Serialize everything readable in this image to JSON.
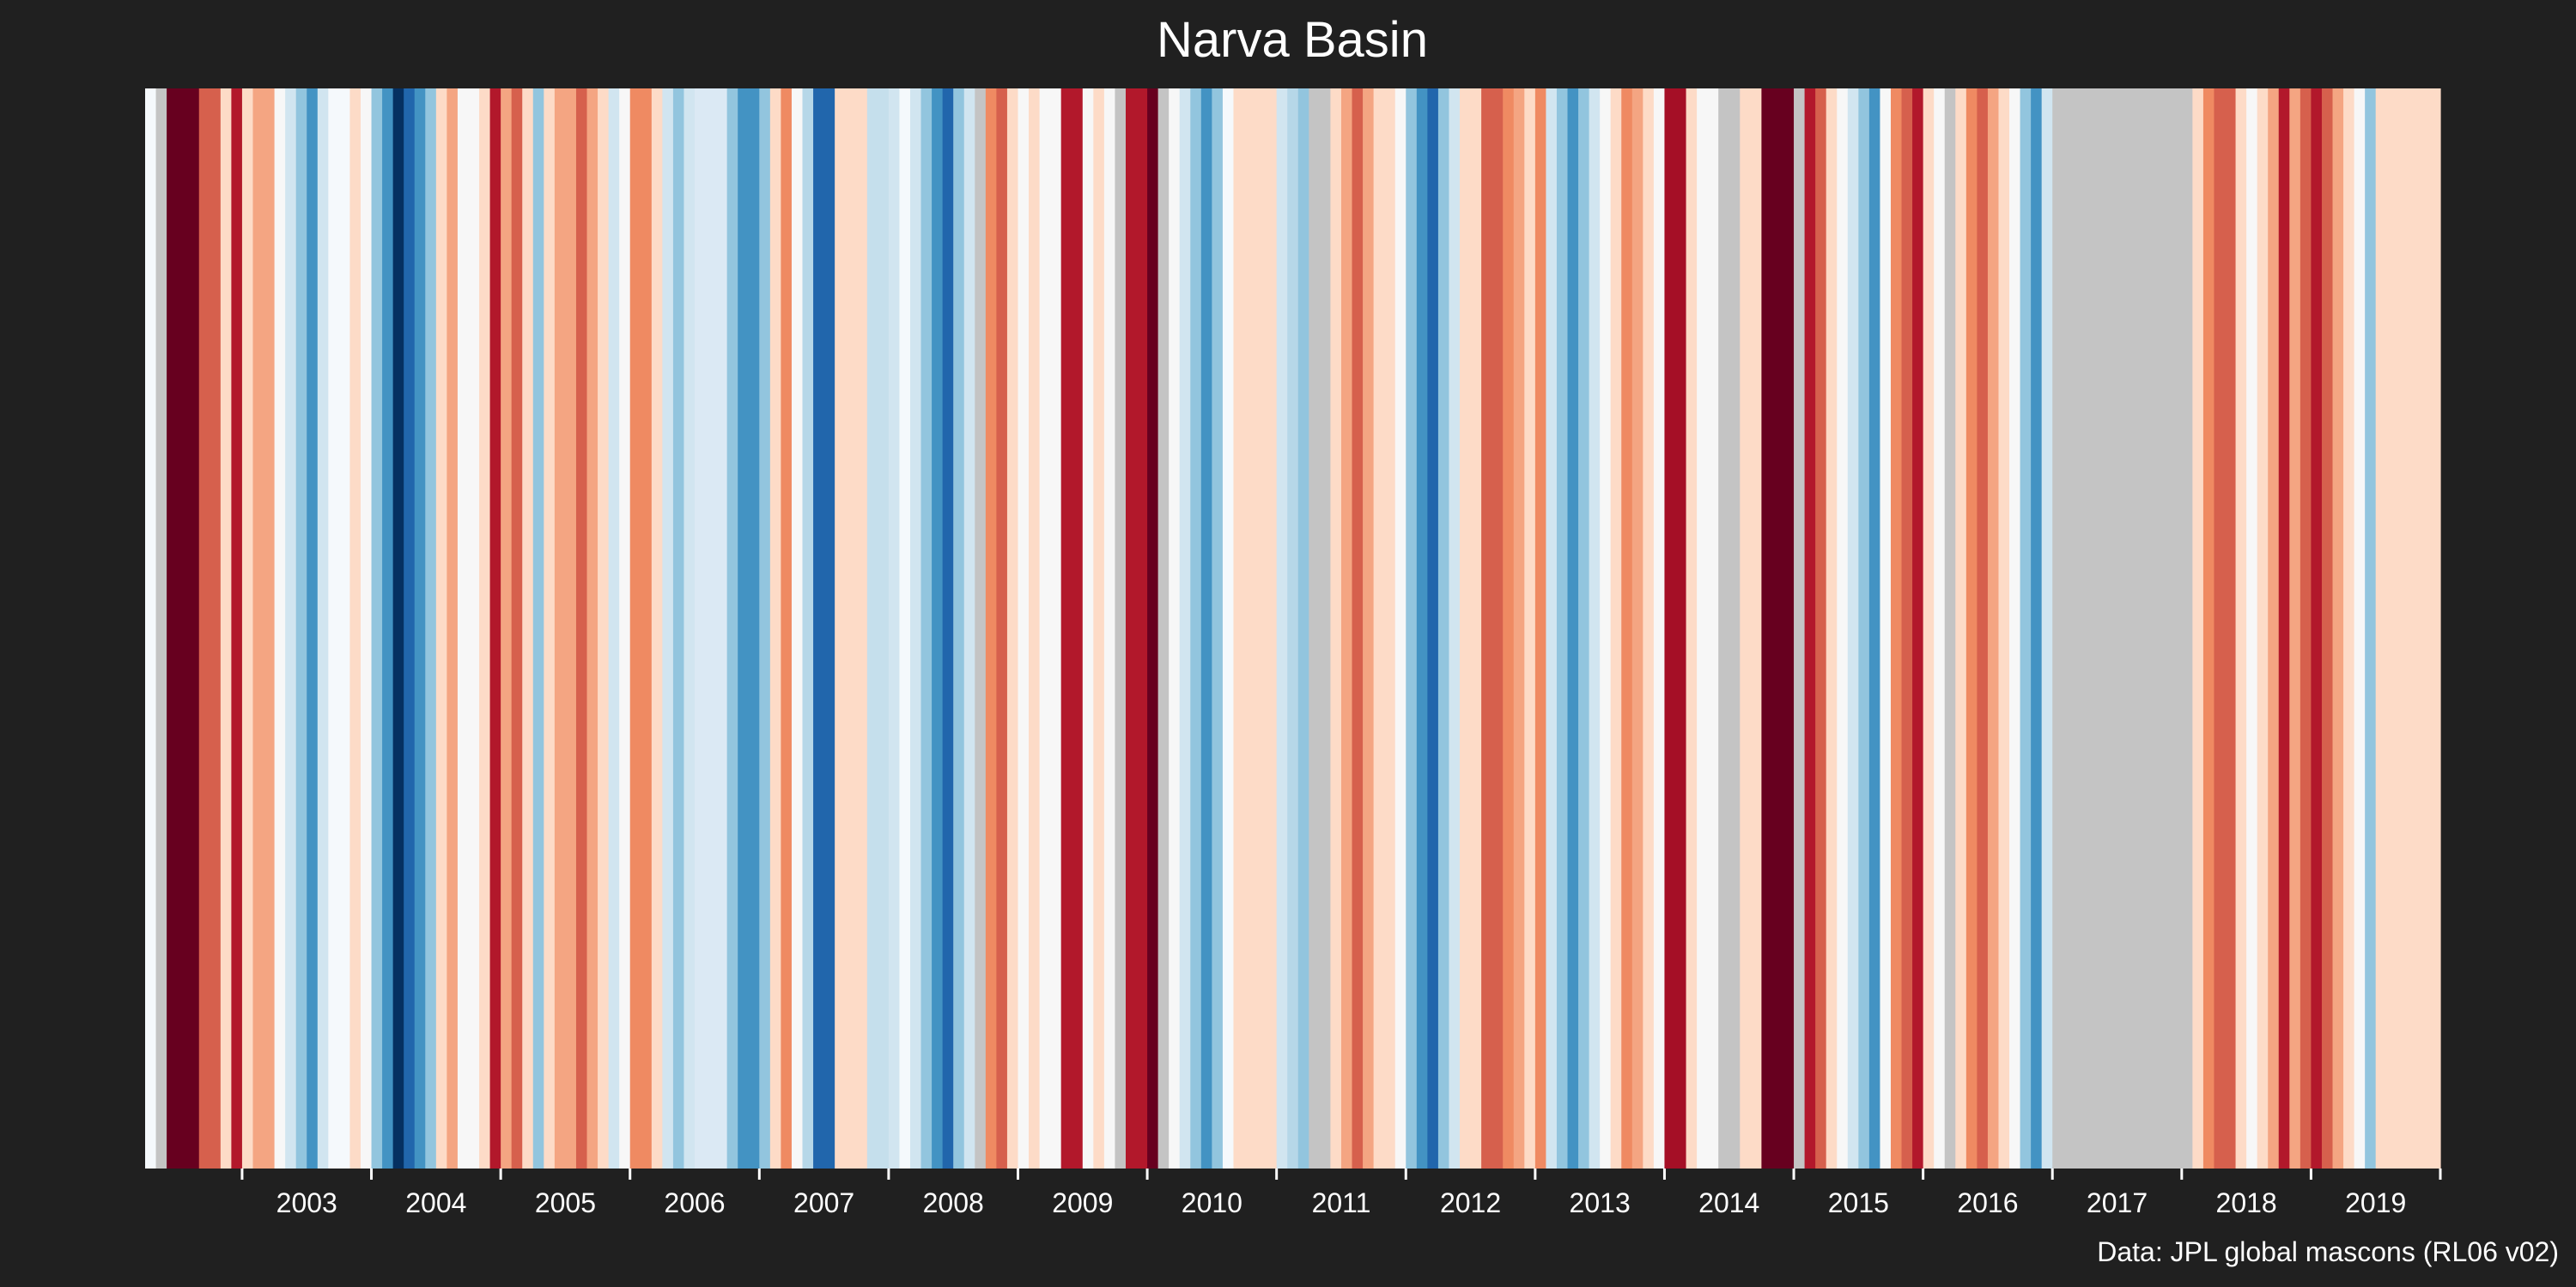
{
  "page": {
    "background": "#202020",
    "credit": "Data: JPL global mascons (RL06 v02)"
  },
  "chart_data": {
    "type": "heatmap",
    "title": "Narva Basin",
    "xlabel": "",
    "ylabel": "",
    "x_unit": "month",
    "x_start": "2002-04",
    "x_end": "2020-01",
    "x_ticks": [
      "2003",
      "2004",
      "2005",
      "2006",
      "2007",
      "2008",
      "2009",
      "2010",
      "2011",
      "2012",
      "2013",
      "2014",
      "2015",
      "2016",
      "2017",
      "2018",
      "2019"
    ],
    "color_scale": "RdBu_r (red = above mean, blue = below mean)",
    "missing_color": "#c4c4c4",
    "grid": false,
    "legend": "none",
    "stripes": [
      {
        "start": "2002-04",
        "end": "2002-05",
        "color": "#f5f9fc"
      },
      {
        "start": "2002-05",
        "end": "2002-06",
        "color": "#c4c4c4"
      },
      {
        "start": "2002-06",
        "end": "2002-09",
        "color": "#67001f"
      },
      {
        "start": "2002-09",
        "end": "2002-11",
        "color": "#d6604d"
      },
      {
        "start": "2002-11",
        "end": "2002-12",
        "color": "#fddbc7"
      },
      {
        "start": "2002-12",
        "end": "2003-01",
        "color": "#b2182b"
      },
      {
        "start": "2003-01",
        "end": "2003-02",
        "color": "#fddbc7"
      },
      {
        "start": "2003-02",
        "end": "2003-04",
        "color": "#f4a582"
      },
      {
        "start": "2003-04",
        "end": "2003-05",
        "color": "#f7f7f7"
      },
      {
        "start": "2003-05",
        "end": "2003-06",
        "color": "#d1e5f0"
      },
      {
        "start": "2003-06",
        "end": "2003-07",
        "color": "#92c5de"
      },
      {
        "start": "2003-07",
        "end": "2003-08",
        "color": "#4393c3"
      },
      {
        "start": "2003-08",
        "end": "2003-09",
        "color": "#d1e5f0"
      },
      {
        "start": "2003-09",
        "end": "2003-11",
        "color": "#f5f9fc"
      },
      {
        "start": "2003-11",
        "end": "2003-12",
        "color": "#fddbc7"
      },
      {
        "start": "2003-12",
        "end": "2004-01",
        "color": "#f7f7f7"
      },
      {
        "start": "2004-01",
        "end": "2004-02",
        "color": "#92c5de"
      },
      {
        "start": "2004-02",
        "end": "2004-03",
        "color": "#4393c3"
      },
      {
        "start": "2004-03",
        "end": "2004-04",
        "color": "#053061"
      },
      {
        "start": "2004-04",
        "end": "2004-05",
        "color": "#2166ac"
      },
      {
        "start": "2004-05",
        "end": "2004-06",
        "color": "#4393c3"
      },
      {
        "start": "2004-06",
        "end": "2004-07",
        "color": "#92c5de"
      },
      {
        "start": "2004-07",
        "end": "2004-08",
        "color": "#fddbc7"
      },
      {
        "start": "2004-08",
        "end": "2004-09",
        "color": "#f4a582"
      },
      {
        "start": "2004-09",
        "end": "2004-11",
        "color": "#f7f7f7"
      },
      {
        "start": "2004-11",
        "end": "2004-12",
        "color": "#fddbc7"
      },
      {
        "start": "2004-12",
        "end": "2005-01",
        "color": "#b2182b"
      },
      {
        "start": "2005-01",
        "end": "2005-02",
        "color": "#f4a582"
      },
      {
        "start": "2005-02",
        "end": "2005-03",
        "color": "#d6604d"
      },
      {
        "start": "2005-03",
        "end": "2005-04",
        "color": "#fddbc7"
      },
      {
        "start": "2005-04",
        "end": "2005-05",
        "color": "#92c5de"
      },
      {
        "start": "2005-05",
        "end": "2005-06",
        "color": "#fddbc7"
      },
      {
        "start": "2005-06",
        "end": "2005-08",
        "color": "#f4a582"
      },
      {
        "start": "2005-08",
        "end": "2005-09",
        "color": "#d6604d"
      },
      {
        "start": "2005-09",
        "end": "2005-10",
        "color": "#f4a582"
      },
      {
        "start": "2005-10",
        "end": "2005-11",
        "color": "#fddbc7"
      },
      {
        "start": "2005-11",
        "end": "2005-12",
        "color": "#d1e5f0"
      },
      {
        "start": "2005-12",
        "end": "2006-01",
        "color": "#f7f7f7"
      },
      {
        "start": "2006-01",
        "end": "2006-03",
        "color": "#ef8a62"
      },
      {
        "start": "2006-03",
        "end": "2006-04",
        "color": "#fddbc7"
      },
      {
        "start": "2006-04",
        "end": "2006-05",
        "color": "#d1e5f0"
      },
      {
        "start": "2006-05",
        "end": "2006-06",
        "color": "#92c5de"
      },
      {
        "start": "2006-06",
        "end": "2006-07",
        "color": "#d1e5f0"
      },
      {
        "start": "2006-07",
        "end": "2006-10",
        "color": "#dbe9f4"
      },
      {
        "start": "2006-10",
        "end": "2006-11",
        "color": "#92c5de"
      },
      {
        "start": "2006-11",
        "end": "2007-01",
        "color": "#4393c3"
      },
      {
        "start": "2007-01",
        "end": "2007-02",
        "color": "#92c5de"
      },
      {
        "start": "2007-02",
        "end": "2007-03",
        "color": "#fddbc7"
      },
      {
        "start": "2007-03",
        "end": "2007-04",
        "color": "#ef8a62"
      },
      {
        "start": "2007-04",
        "end": "2007-05",
        "color": "#f7f7f7"
      },
      {
        "start": "2007-05",
        "end": "2007-06",
        "color": "#b6d7e8"
      },
      {
        "start": "2007-06",
        "end": "2007-08",
        "color": "#2166ac"
      },
      {
        "start": "2007-08",
        "end": "2007-09",
        "color": "#fddbc7"
      },
      {
        "start": "2007-09",
        "end": "2007-11",
        "color": "#fddbc7"
      },
      {
        "start": "2007-11",
        "end": "2008-01",
        "color": "#c5dfec"
      },
      {
        "start": "2008-01",
        "end": "2008-02",
        "color": "#d1e5f0"
      },
      {
        "start": "2008-02",
        "end": "2008-03",
        "color": "#f5f9fc"
      },
      {
        "start": "2008-03",
        "end": "2008-04",
        "color": "#d1e5f0"
      },
      {
        "start": "2008-04",
        "end": "2008-05",
        "color": "#92c5de"
      },
      {
        "start": "2008-05",
        "end": "2008-06",
        "color": "#4393c3"
      },
      {
        "start": "2008-06",
        "end": "2008-07",
        "color": "#2166ac"
      },
      {
        "start": "2008-07",
        "end": "2008-08",
        "color": "#92c5de"
      },
      {
        "start": "2008-08",
        "end": "2008-09",
        "color": "#d1e5f0"
      },
      {
        "start": "2008-09",
        "end": "2008-10",
        "color": "#c4c4c4"
      },
      {
        "start": "2008-10",
        "end": "2008-11",
        "color": "#ef8a62"
      },
      {
        "start": "2008-11",
        "end": "2008-12",
        "color": "#d6604d"
      },
      {
        "start": "2008-12",
        "end": "2009-01",
        "color": "#fddbc7"
      },
      {
        "start": "2009-01",
        "end": "2009-02",
        "color": "#f7f7f7"
      },
      {
        "start": "2009-02",
        "end": "2009-03",
        "color": "#fddbc7"
      },
      {
        "start": "2009-03",
        "end": "2009-05",
        "color": "#f7f7f7"
      },
      {
        "start": "2009-05",
        "end": "2009-07",
        "color": "#b2182b"
      },
      {
        "start": "2009-07",
        "end": "2009-08",
        "color": "#f7f7f7"
      },
      {
        "start": "2009-08",
        "end": "2009-09",
        "color": "#fddbc7"
      },
      {
        "start": "2009-09",
        "end": "2009-10",
        "color": "#f7f7f7"
      },
      {
        "start": "2009-10",
        "end": "2009-11",
        "color": "#c4c4c4"
      },
      {
        "start": "2009-11",
        "end": "2010-01",
        "color": "#b2182b"
      },
      {
        "start": "2010-01",
        "end": "2010-02",
        "color": "#67001f"
      },
      {
        "start": "2010-02",
        "end": "2010-03",
        "color": "#c4c4c4"
      },
      {
        "start": "2010-03",
        "end": "2010-04",
        "color": "#f7f7f7"
      },
      {
        "start": "2010-04",
        "end": "2010-05",
        "color": "#d1e5f0"
      },
      {
        "start": "2010-05",
        "end": "2010-06",
        "color": "#92c5de"
      },
      {
        "start": "2010-06",
        "end": "2010-07",
        "color": "#4393c3"
      },
      {
        "start": "2010-07",
        "end": "2010-08",
        "color": "#92c5de"
      },
      {
        "start": "2010-08",
        "end": "2010-09",
        "color": "#f5f9fc"
      },
      {
        "start": "2010-09",
        "end": "2011-01",
        "color": "#fddbc7"
      },
      {
        "start": "2011-01",
        "end": "2011-02",
        "color": "#d1e5f0"
      },
      {
        "start": "2011-02",
        "end": "2011-03",
        "color": "#b6d7e8"
      },
      {
        "start": "2011-03",
        "end": "2011-04",
        "color": "#92c5de"
      },
      {
        "start": "2011-04",
        "end": "2011-06",
        "color": "#c4c4c4"
      },
      {
        "start": "2011-06",
        "end": "2011-07",
        "color": "#fddbc7"
      },
      {
        "start": "2011-07",
        "end": "2011-08",
        "color": "#f4a582"
      },
      {
        "start": "2011-08",
        "end": "2011-09",
        "color": "#d6604d"
      },
      {
        "start": "2011-09",
        "end": "2011-10",
        "color": "#f4a582"
      },
      {
        "start": "2011-10",
        "end": "2011-12",
        "color": "#fddbc7"
      },
      {
        "start": "2011-12",
        "end": "2012-01",
        "color": "#f7f7f7"
      },
      {
        "start": "2012-01",
        "end": "2012-02",
        "color": "#92c5de"
      },
      {
        "start": "2012-02",
        "end": "2012-03",
        "color": "#4393c3"
      },
      {
        "start": "2012-03",
        "end": "2012-04",
        "color": "#2166ac"
      },
      {
        "start": "2012-04",
        "end": "2012-05",
        "color": "#92c5de"
      },
      {
        "start": "2012-05",
        "end": "2012-06",
        "color": "#d1e5f0"
      },
      {
        "start": "2012-06",
        "end": "2012-08",
        "color": "#fddbc7"
      },
      {
        "start": "2012-08",
        "end": "2012-10",
        "color": "#d6604d"
      },
      {
        "start": "2012-10",
        "end": "2012-11",
        "color": "#ef8a62"
      },
      {
        "start": "2012-11",
        "end": "2012-12",
        "color": "#f4a582"
      },
      {
        "start": "2012-12",
        "end": "2013-01",
        "color": "#fddbc7"
      },
      {
        "start": "2013-01",
        "end": "2013-02",
        "color": "#ef8a62"
      },
      {
        "start": "2013-02",
        "end": "2013-03",
        "color": "#d1e5f0"
      },
      {
        "start": "2013-03",
        "end": "2013-04",
        "color": "#92c5de"
      },
      {
        "start": "2013-04",
        "end": "2013-05",
        "color": "#4393c3"
      },
      {
        "start": "2013-05",
        "end": "2013-06",
        "color": "#92c5de"
      },
      {
        "start": "2013-06",
        "end": "2013-07",
        "color": "#d1e5f0"
      },
      {
        "start": "2013-07",
        "end": "2013-08",
        "color": "#f7f7f7"
      },
      {
        "start": "2013-08",
        "end": "2013-09",
        "color": "#fddbc7"
      },
      {
        "start": "2013-09",
        "end": "2013-10",
        "color": "#ef8a62"
      },
      {
        "start": "2013-10",
        "end": "2013-11",
        "color": "#f4a582"
      },
      {
        "start": "2013-11",
        "end": "2013-12",
        "color": "#fddbc7"
      },
      {
        "start": "2013-12",
        "end": "2014-01",
        "color": "#f7f7f7"
      },
      {
        "start": "2014-01",
        "end": "2014-03",
        "color": "#a50f26"
      },
      {
        "start": "2014-03",
        "end": "2014-04",
        "color": "#fddbc7"
      },
      {
        "start": "2014-04",
        "end": "2014-06",
        "color": "#f7f7f7"
      },
      {
        "start": "2014-06",
        "end": "2014-08",
        "color": "#c4c4c4"
      },
      {
        "start": "2014-08",
        "end": "2014-10",
        "color": "#fddbc7"
      },
      {
        "start": "2014-10",
        "end": "2015-01",
        "color": "#67001f"
      },
      {
        "start": "2015-01",
        "end": "2015-02",
        "color": "#c4c4c4"
      },
      {
        "start": "2015-02",
        "end": "2015-03",
        "color": "#b2182b"
      },
      {
        "start": "2015-03",
        "end": "2015-04",
        "color": "#d6604d"
      },
      {
        "start": "2015-04",
        "end": "2015-05",
        "color": "#fddbc7"
      },
      {
        "start": "2015-05",
        "end": "2015-06",
        "color": "#f7f7f7"
      },
      {
        "start": "2015-06",
        "end": "2015-07",
        "color": "#d1e5f0"
      },
      {
        "start": "2015-07",
        "end": "2015-08",
        "color": "#92c5de"
      },
      {
        "start": "2015-08",
        "end": "2015-09",
        "color": "#4393c3"
      },
      {
        "start": "2015-09",
        "end": "2015-10",
        "color": "#f7f7f7"
      },
      {
        "start": "2015-10",
        "end": "2015-11",
        "color": "#ef8a62"
      },
      {
        "start": "2015-11",
        "end": "2015-12",
        "color": "#d6604d"
      },
      {
        "start": "2015-12",
        "end": "2016-01",
        "color": "#b2182b"
      },
      {
        "start": "2016-01",
        "end": "2016-02",
        "color": "#fddbc7"
      },
      {
        "start": "2016-02",
        "end": "2016-03",
        "color": "#f7f7f7"
      },
      {
        "start": "2016-03",
        "end": "2016-04",
        "color": "#c4c4c4"
      },
      {
        "start": "2016-04",
        "end": "2016-05",
        "color": "#fddbc7"
      },
      {
        "start": "2016-05",
        "end": "2016-06",
        "color": "#ef8a62"
      },
      {
        "start": "2016-06",
        "end": "2016-07",
        "color": "#d6604d"
      },
      {
        "start": "2016-07",
        "end": "2016-08",
        "color": "#f4a582"
      },
      {
        "start": "2016-08",
        "end": "2016-09",
        "color": "#fddbc7"
      },
      {
        "start": "2016-09",
        "end": "2016-10",
        "color": "#f7f7f7"
      },
      {
        "start": "2016-10",
        "end": "2016-11",
        "color": "#92c5de"
      },
      {
        "start": "2016-11",
        "end": "2016-12",
        "color": "#4393c3"
      },
      {
        "start": "2016-12",
        "end": "2017-01",
        "color": "#d1e5f0"
      },
      {
        "start": "2017-01",
        "end": "2018-02",
        "color": "#c4c4c4"
      },
      {
        "start": "2018-02",
        "end": "2018-03",
        "color": "#fddbc7"
      },
      {
        "start": "2018-03",
        "end": "2018-04",
        "color": "#ef8a62"
      },
      {
        "start": "2018-04",
        "end": "2018-06",
        "color": "#d6604d"
      },
      {
        "start": "2018-06",
        "end": "2018-07",
        "color": "#fddbc7"
      },
      {
        "start": "2018-07",
        "end": "2018-08",
        "color": "#f7f7f7"
      },
      {
        "start": "2018-08",
        "end": "2018-09",
        "color": "#fddbc7"
      },
      {
        "start": "2018-09",
        "end": "2018-10",
        "color": "#f4a582"
      },
      {
        "start": "2018-10",
        "end": "2018-11",
        "color": "#b2182b"
      },
      {
        "start": "2018-11",
        "end": "2018-12",
        "color": "#f4a582"
      },
      {
        "start": "2018-12",
        "end": "2019-01",
        "color": "#d6604d"
      },
      {
        "start": "2019-01",
        "end": "2019-02",
        "color": "#b2182b"
      },
      {
        "start": "2019-02",
        "end": "2019-03",
        "color": "#d6604d"
      },
      {
        "start": "2019-03",
        "end": "2019-04",
        "color": "#f4a582"
      },
      {
        "start": "2019-04",
        "end": "2019-05",
        "color": "#fddbc7"
      },
      {
        "start": "2019-05",
        "end": "2019-06",
        "color": "#f7f7f7"
      },
      {
        "start": "2019-06",
        "end": "2019-07",
        "color": "#92c5de"
      },
      {
        "start": "2019-07",
        "end": "2020-01",
        "color": "#fddbc7"
      }
    ]
  }
}
